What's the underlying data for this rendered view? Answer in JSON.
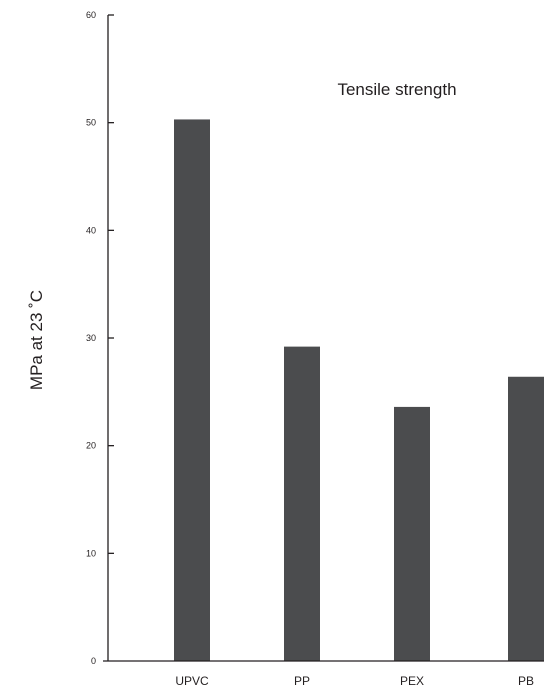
{
  "chart_data": {
    "type": "bar",
    "title": "Tensile strength",
    "xlabel": "",
    "ylabel": "MPa at 23 ˚C",
    "categories": [
      "UPVC",
      "PP",
      "PEX",
      "PB"
    ],
    "values": [
      50.3,
      29.2,
      23.6,
      26.4
    ],
    "ylim": [
      0,
      60
    ],
    "yticks": [
      "0",
      "10",
      "20",
      "30",
      "40",
      "50",
      "60"
    ],
    "grid": false,
    "legend": "none",
    "bar_color": "#4b4c4e",
    "axis_color": "#231f20"
  }
}
